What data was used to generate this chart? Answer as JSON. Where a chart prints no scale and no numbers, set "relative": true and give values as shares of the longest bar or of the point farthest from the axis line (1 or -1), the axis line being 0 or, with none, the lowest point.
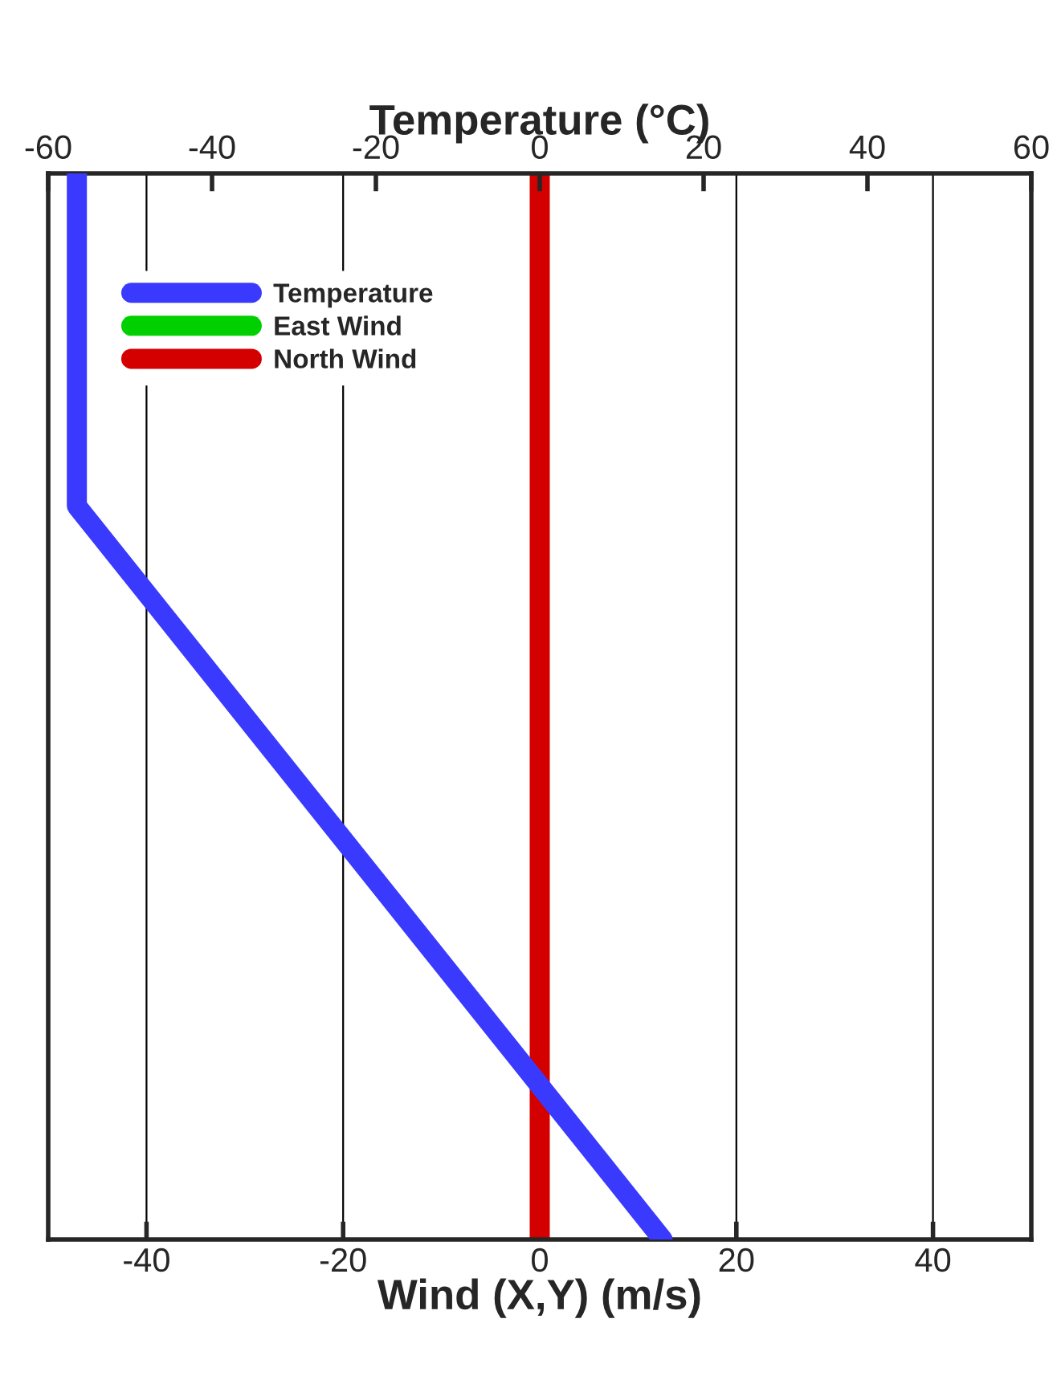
{
  "chart_data": {
    "type": "line",
    "relative": true,
    "xlabel": "Wind (X,Y) (m/s)",
    "x2label": "Temperature (°C)",
    "xlim": [
      -50,
      50
    ],
    "xticks": [
      -40,
      -20,
      0,
      20,
      40
    ],
    "x2lim": [
      -60,
      60
    ],
    "x2ticks": [
      -60,
      -40,
      -20,
      0,
      20,
      40,
      60
    ],
    "grid": "x",
    "legend": "top left",
    "series": [
      {
        "name": "Temperature",
        "color": "#3a3aff",
        "axis": "x2",
        "x": [
          -56.5,
          -56.5,
          15
        ],
        "values": [
          1,
          0.688,
          0
        ]
      },
      {
        "name": "East Wind",
        "color": "#00d000",
        "x": [
          null,
          null
        ],
        "values": [
          null,
          null
        ]
      },
      {
        "name": "North Wind",
        "color": "#d40000",
        "x": [
          0,
          0
        ],
        "values": [
          1,
          0
        ]
      }
    ]
  }
}
